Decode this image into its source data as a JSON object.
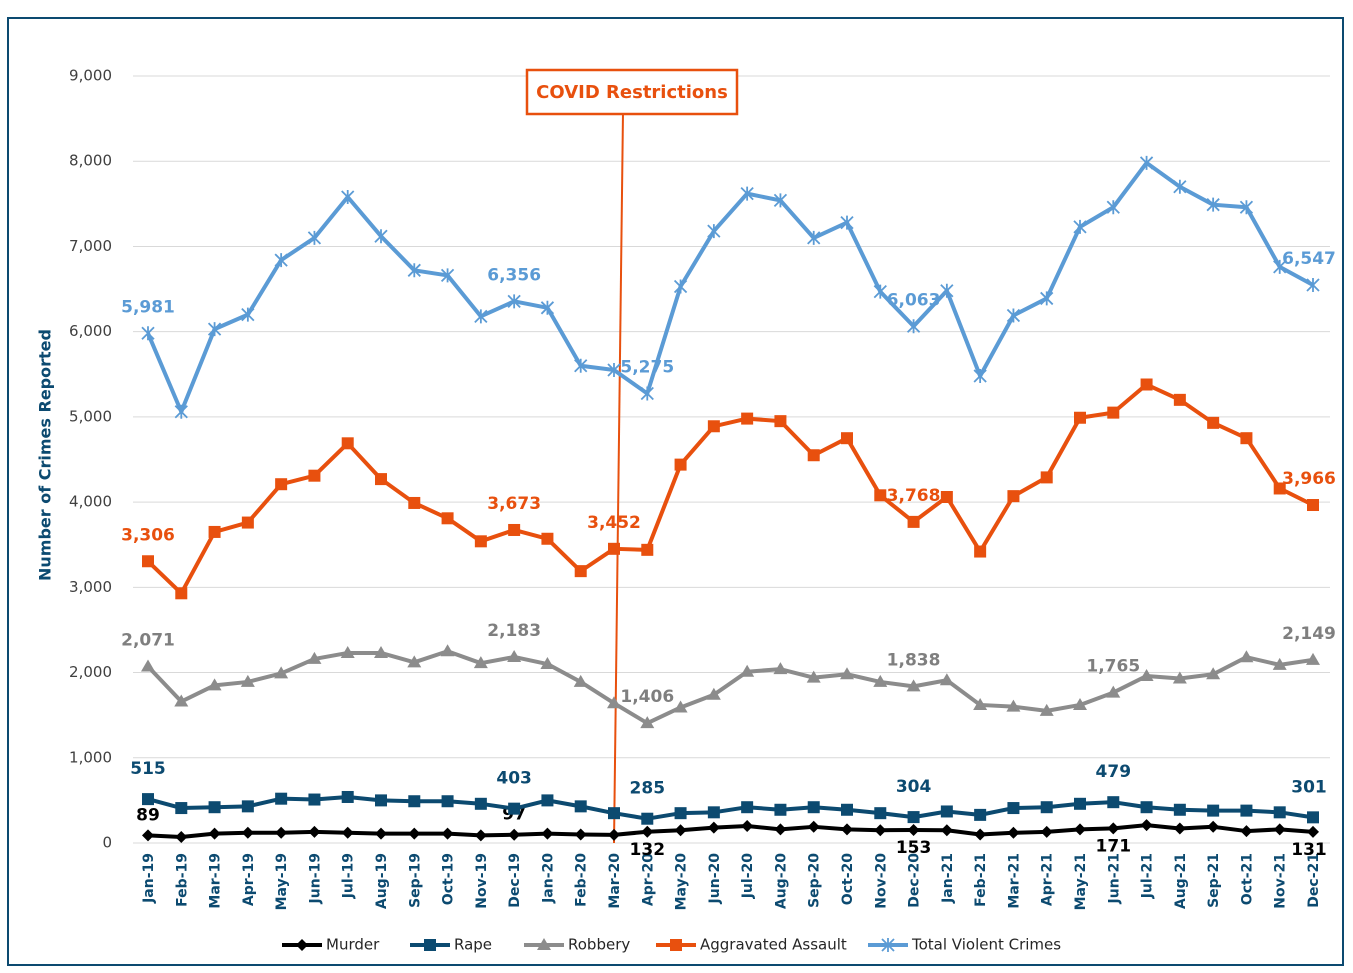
{
  "chart_data": {
    "type": "line",
    "y_label": "Number of Crimes Reported",
    "annotation": {
      "text": "COVID Restrictions",
      "x": "Mar-20"
    },
    "categories": [
      "Jan-19",
      "Feb-19",
      "Mar-19",
      "Apr-19",
      "May-19",
      "Jun-19",
      "Jul-19",
      "Aug-19",
      "Sep-19",
      "Oct-19",
      "Nov-19",
      "Dec-19",
      "Jan-20",
      "Feb-20",
      "Mar-20",
      "Apr-20",
      "May-20",
      "Jun-20",
      "Jul-20",
      "Aug-20",
      "Sep-20",
      "Oct-20",
      "Nov-20",
      "Dec-20",
      "Jan-21",
      "Feb-21",
      "Mar-21",
      "Apr-21",
      "May-21",
      "Jun-21",
      "Jul-21",
      "Aug-21",
      "Sep-21",
      "Oct-21",
      "Nov-21",
      "Dec-21"
    ],
    "ylim": [
      0,
      9000
    ],
    "yticks": [
      0,
      {
        "value": 1000,
        "label": "1,000"
      },
      {
        "value": 2000,
        "label": "2,000"
      },
      {
        "value": 3000,
        "label": "3,000"
      },
      {
        "value": 4000,
        "label": "4,000"
      },
      {
        "value": 5000,
        "label": "5,000"
      },
      {
        "value": 6000,
        "label": "6,000"
      },
      {
        "value": 7000,
        "label": "7,000"
      },
      {
        "value": 8000,
        "label": "8,000"
      },
      {
        "value": 9000,
        "label": "9,000"
      }
    ],
    "grid": true,
    "legend": "bottom",
    "series": [
      {
        "name": "Murder",
        "color": "#000000",
        "marker": "diamond",
        "values": [
          89,
          70,
          110,
          120,
          120,
          130,
          120,
          110,
          110,
          110,
          90,
          97,
          110,
          100,
          95,
          132,
          150,
          180,
          200,
          160,
          190,
          160,
          150,
          153,
          150,
          100,
          120,
          130,
          160,
          171,
          210,
          170,
          190,
          140,
          160,
          131
        ],
        "value_labels": [
          "89",
          null,
          null,
          null,
          null,
          null,
          null,
          null,
          null,
          null,
          null,
          "97",
          null,
          null,
          null,
          "132",
          null,
          null,
          null,
          null,
          null,
          null,
          null,
          "153",
          null,
          null,
          null,
          null,
          null,
          "171",
          null,
          null,
          null,
          null,
          null,
          "131"
        ]
      },
      {
        "name": "Rape",
        "color": "#0c4a70",
        "marker": "square",
        "values": [
          515,
          410,
          420,
          430,
          520,
          510,
          540,
          500,
          490,
          490,
          460,
          403,
          500,
          430,
          350,
          285,
          350,
          360,
          420,
          390,
          420,
          390,
          350,
          304,
          370,
          330,
          410,
          420,
          460,
          479,
          420,
          390,
          380,
          380,
          360,
          301
        ],
        "value_labels": [
          "515",
          null,
          null,
          null,
          null,
          null,
          null,
          null,
          null,
          null,
          null,
          "403",
          null,
          null,
          null,
          "285",
          null,
          null,
          null,
          null,
          null,
          null,
          null,
          "304",
          null,
          null,
          null,
          null,
          null,
          "479",
          null,
          null,
          null,
          null,
          null,
          "301"
        ]
      },
      {
        "name": "Robbery",
        "color": "#8c8c8c",
        "marker": "triangle",
        "values": [
          2071,
          1660,
          1850,
          1890,
          1990,
          2160,
          2230,
          2230,
          2120,
          2250,
          2110,
          2183,
          2100,
          1890,
          1640,
          1406,
          1590,
          1740,
          2010,
          2040,
          1940,
          1980,
          1890,
          1838,
          1910,
          1620,
          1600,
          1550,
          1620,
          1765,
          1960,
          1930,
          1980,
          2180,
          2090,
          2149
        ],
        "value_labels": [
          "2,071",
          null,
          null,
          null,
          null,
          null,
          null,
          null,
          null,
          null,
          null,
          "2,183",
          null,
          null,
          null,
          "1,406",
          null,
          null,
          null,
          null,
          null,
          null,
          null,
          "1,838",
          null,
          null,
          null,
          null,
          null,
          "1,765",
          null,
          null,
          null,
          null,
          null,
          "2,149"
        ]
      },
      {
        "name": "Aggravated Assault",
        "color": "#e8500e",
        "marker": "square",
        "values": [
          3306,
          2930,
          3650,
          3760,
          4210,
          4310,
          4690,
          4270,
          3990,
          3810,
          3540,
          3673,
          3570,
          3190,
          3452,
          3440,
          4440,
          4890,
          4980,
          4950,
          4550,
          4750,
          4080,
          3768,
          4060,
          3420,
          4070,
          4290,
          4990,
          5050,
          5380,
          5200,
          4930,
          4750,
          4160,
          3966
        ],
        "value_labels": [
          "3,306",
          null,
          null,
          null,
          null,
          null,
          null,
          null,
          null,
          null,
          null,
          "3,673",
          null,
          null,
          "3,452",
          null,
          null,
          null,
          null,
          null,
          null,
          null,
          null,
          "3,768",
          null,
          null,
          null,
          null,
          null,
          null,
          null,
          null,
          null,
          null,
          null,
          "3,966"
        ]
      },
      {
        "name": "Total Violent Crimes",
        "color": "#5b9bd5",
        "marker": "star",
        "values": [
          5981,
          5060,
          6030,
          6200,
          6840,
          7100,
          7580,
          7120,
          6720,
          6660,
          6180,
          6356,
          6280,
          5600,
          5550,
          5275,
          6530,
          7180,
          7620,
          7540,
          7100,
          7280,
          6470,
          6063,
          6480,
          5480,
          6190,
          6390,
          7230,
          7460,
          7980,
          7700,
          7490,
          7460,
          6760,
          6547
        ],
        "value_labels": [
          "5,981",
          null,
          null,
          null,
          null,
          null,
          null,
          null,
          null,
          null,
          null,
          "6,356",
          null,
          null,
          null,
          "5,275",
          null,
          null,
          null,
          null,
          null,
          null,
          null,
          "6,063",
          null,
          null,
          null,
          null,
          null,
          null,
          null,
          null,
          null,
          null,
          null,
          "6,547"
        ]
      }
    ]
  }
}
